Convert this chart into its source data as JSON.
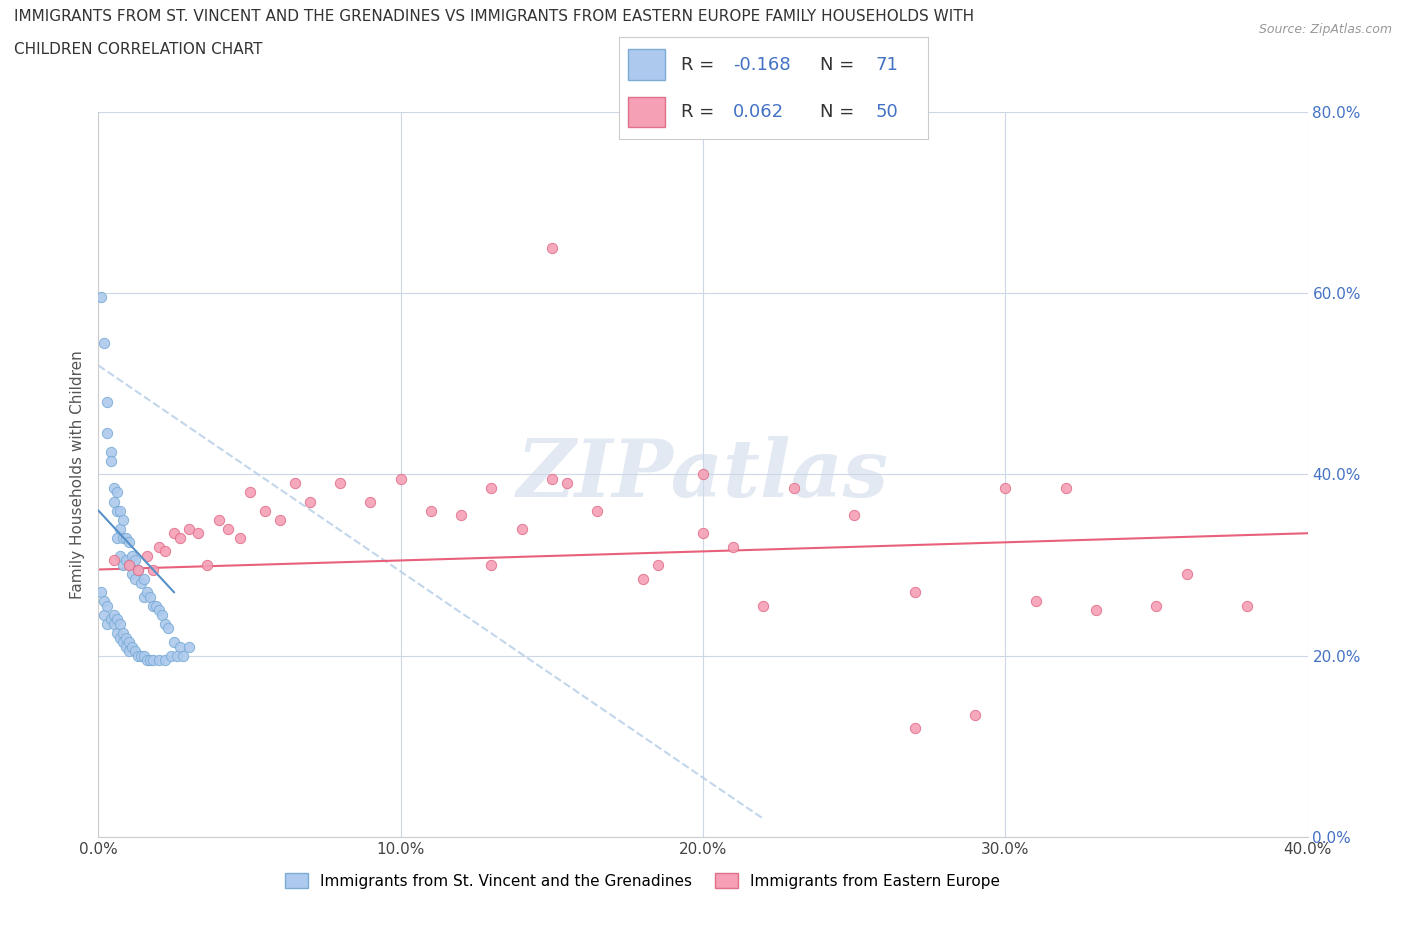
{
  "title_line1": "IMMIGRANTS FROM ST. VINCENT AND THE GRENADINES VS IMMIGRANTS FROM EASTERN EUROPE FAMILY HOUSEHOLDS WITH",
  "title_line2": "CHILDREN CORRELATION CHART",
  "source_text": "Source: ZipAtlas.com",
  "ylabel": "Family Households with Children",
  "watermark": "ZIPatlas",
  "series1": {
    "label": "Immigrants from St. Vincent and the Grenadines",
    "color": "#adc9ed",
    "edge_color": "#7aacd6",
    "R": -0.168,
    "N": 71,
    "trend_color": "#b8cfe8",
    "trend_style": "--"
  },
  "series2": {
    "label": "Immigrants from Eastern Europe",
    "color": "#f5a0b5",
    "edge_color": "#e0708a",
    "R": 0.062,
    "N": 50,
    "trend_color": "#e8607a",
    "trend_style": "-"
  },
  "xlim": [
    0.0,
    0.4
  ],
  "ylim": [
    0.0,
    0.8
  ],
  "xticks": [
    0.0,
    0.1,
    0.2,
    0.3,
    0.4
  ],
  "yticks": [
    0.0,
    0.2,
    0.4,
    0.6,
    0.8
  ],
  "grid_color": "#ccd8e8",
  "background_color": "#ffffff",
  "blue_scatter_x": [
    0.001,
    0.002,
    0.003,
    0.003,
    0.004,
    0.004,
    0.005,
    0.005,
    0.006,
    0.006,
    0.006,
    0.007,
    0.007,
    0.007,
    0.008,
    0.008,
    0.008,
    0.009,
    0.009,
    0.01,
    0.01,
    0.011,
    0.011,
    0.012,
    0.012,
    0.013,
    0.014,
    0.015,
    0.015,
    0.016,
    0.017,
    0.018,
    0.019,
    0.02,
    0.021,
    0.022,
    0.023,
    0.025,
    0.027,
    0.03
  ],
  "blue_scatter_y": [
    0.595,
    0.545,
    0.48,
    0.445,
    0.425,
    0.415,
    0.385,
    0.37,
    0.38,
    0.36,
    0.33,
    0.36,
    0.34,
    0.31,
    0.35,
    0.33,
    0.3,
    0.33,
    0.305,
    0.325,
    0.3,
    0.31,
    0.29,
    0.305,
    0.285,
    0.295,
    0.28,
    0.285,
    0.265,
    0.27,
    0.265,
    0.255,
    0.255,
    0.25,
    0.245,
    0.235,
    0.23,
    0.215,
    0.21,
    0.21
  ],
  "blue_scatter_x2": [
    0.001,
    0.002,
    0.002,
    0.003,
    0.003,
    0.004,
    0.005,
    0.005,
    0.006,
    0.006,
    0.007,
    0.007,
    0.008,
    0.008,
    0.009,
    0.009,
    0.01,
    0.01,
    0.011,
    0.012,
    0.013,
    0.014,
    0.015,
    0.016,
    0.017,
    0.018,
    0.02,
    0.022,
    0.024,
    0.026,
    0.028
  ],
  "blue_scatter_y2": [
    0.27,
    0.26,
    0.245,
    0.255,
    0.235,
    0.24,
    0.245,
    0.235,
    0.24,
    0.225,
    0.235,
    0.22,
    0.225,
    0.215,
    0.22,
    0.21,
    0.215,
    0.205,
    0.21,
    0.205,
    0.2,
    0.2,
    0.2,
    0.195,
    0.195,
    0.195,
    0.195,
    0.195,
    0.2,
    0.2,
    0.2
  ],
  "pink_scatter_x": [
    0.005,
    0.01,
    0.013,
    0.016,
    0.018,
    0.02,
    0.022,
    0.025,
    0.027,
    0.03,
    0.033,
    0.036,
    0.04,
    0.043,
    0.047,
    0.05,
    0.055,
    0.06,
    0.065,
    0.07,
    0.08,
    0.09,
    0.1,
    0.11,
    0.12,
    0.13,
    0.14,
    0.15,
    0.155,
    0.165,
    0.18,
    0.185,
    0.2,
    0.21,
    0.22,
    0.23,
    0.25,
    0.27,
    0.29,
    0.3,
    0.32,
    0.33,
    0.15,
    0.2,
    0.13,
    0.27,
    0.31,
    0.35,
    0.36,
    0.38
  ],
  "pink_scatter_y": [
    0.305,
    0.3,
    0.295,
    0.31,
    0.295,
    0.32,
    0.315,
    0.335,
    0.33,
    0.34,
    0.335,
    0.3,
    0.35,
    0.34,
    0.33,
    0.38,
    0.36,
    0.35,
    0.39,
    0.37,
    0.39,
    0.37,
    0.395,
    0.36,
    0.355,
    0.3,
    0.34,
    0.65,
    0.39,
    0.36,
    0.285,
    0.3,
    0.335,
    0.32,
    0.255,
    0.385,
    0.355,
    0.27,
    0.135,
    0.385,
    0.385,
    0.25,
    0.395,
    0.4,
    0.385,
    0.12,
    0.26,
    0.255,
    0.29,
    0.255
  ]
}
